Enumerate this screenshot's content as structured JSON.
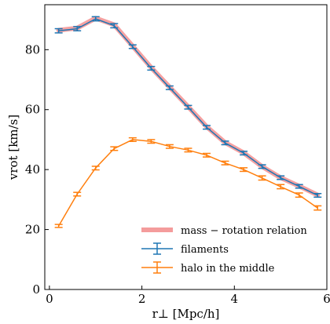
{
  "chart_data": {
    "type": "line",
    "xlabel": "r⊥ [Mpc/h]",
    "ylabel": "vrot [km/s]",
    "xlim": [
      -0.1,
      6.0
    ],
    "ylim": [
      0,
      95
    ],
    "xticks": [
      0,
      2,
      4,
      6
    ],
    "yticks": [
      0,
      20,
      40,
      60,
      80
    ],
    "grid": false,
    "legend_position": "lower-right",
    "series": [
      {
        "name": "mass − rotation relation",
        "style": "band",
        "color": "#f49c9c",
        "x": [
          0.2,
          0.6,
          1.0,
          1.4,
          1.8,
          2.2,
          2.6,
          3.0,
          3.4,
          3.8,
          4.2,
          4.6,
          5.0,
          5.4,
          5.8
        ],
        "values": [
          86.5,
          87.2,
          90.5,
          88.3,
          81.2,
          74.0,
          67.5,
          61.0,
          54.3,
          49.0,
          45.6,
          41.0,
          37.3,
          34.5,
          31.5
        ]
      },
      {
        "name": "filaments",
        "style": "errorbar",
        "color": "#1f77b4",
        "x": [
          0.2,
          0.6,
          1.0,
          1.4,
          1.8,
          2.2,
          2.6,
          3.0,
          3.4,
          3.8,
          4.2,
          4.6,
          5.0,
          5.4,
          5.8
        ],
        "values": [
          86.3,
          87.0,
          90.3,
          88.0,
          81.0,
          73.8,
          67.3,
          60.8,
          54.1,
          48.9,
          45.5,
          41.0,
          37.3,
          34.4,
          31.4
        ],
        "errors": [
          0.7,
          0.7,
          0.7,
          0.7,
          0.6,
          0.6,
          0.6,
          0.6,
          0.6,
          0.6,
          0.6,
          0.6,
          0.6,
          0.6,
          0.6
        ]
      },
      {
        "name": "halo in the middle",
        "style": "errorbar",
        "color": "#ff7f0e",
        "x": [
          0.2,
          0.6,
          1.0,
          1.4,
          1.8,
          2.2,
          2.6,
          3.0,
          3.4,
          3.8,
          4.2,
          4.6,
          5.0,
          5.4,
          5.8
        ],
        "values": [
          21.2,
          31.8,
          40.5,
          47.0,
          50.0,
          49.4,
          47.7,
          46.5,
          44.8,
          42.2,
          40.0,
          37.2,
          34.3,
          31.5,
          27.2
        ],
        "errors": [
          0.5,
          0.6,
          0.6,
          0.6,
          0.6,
          0.6,
          0.6,
          0.6,
          0.6,
          0.6,
          0.6,
          0.7,
          0.7,
          0.7,
          0.7
        ]
      }
    ]
  }
}
